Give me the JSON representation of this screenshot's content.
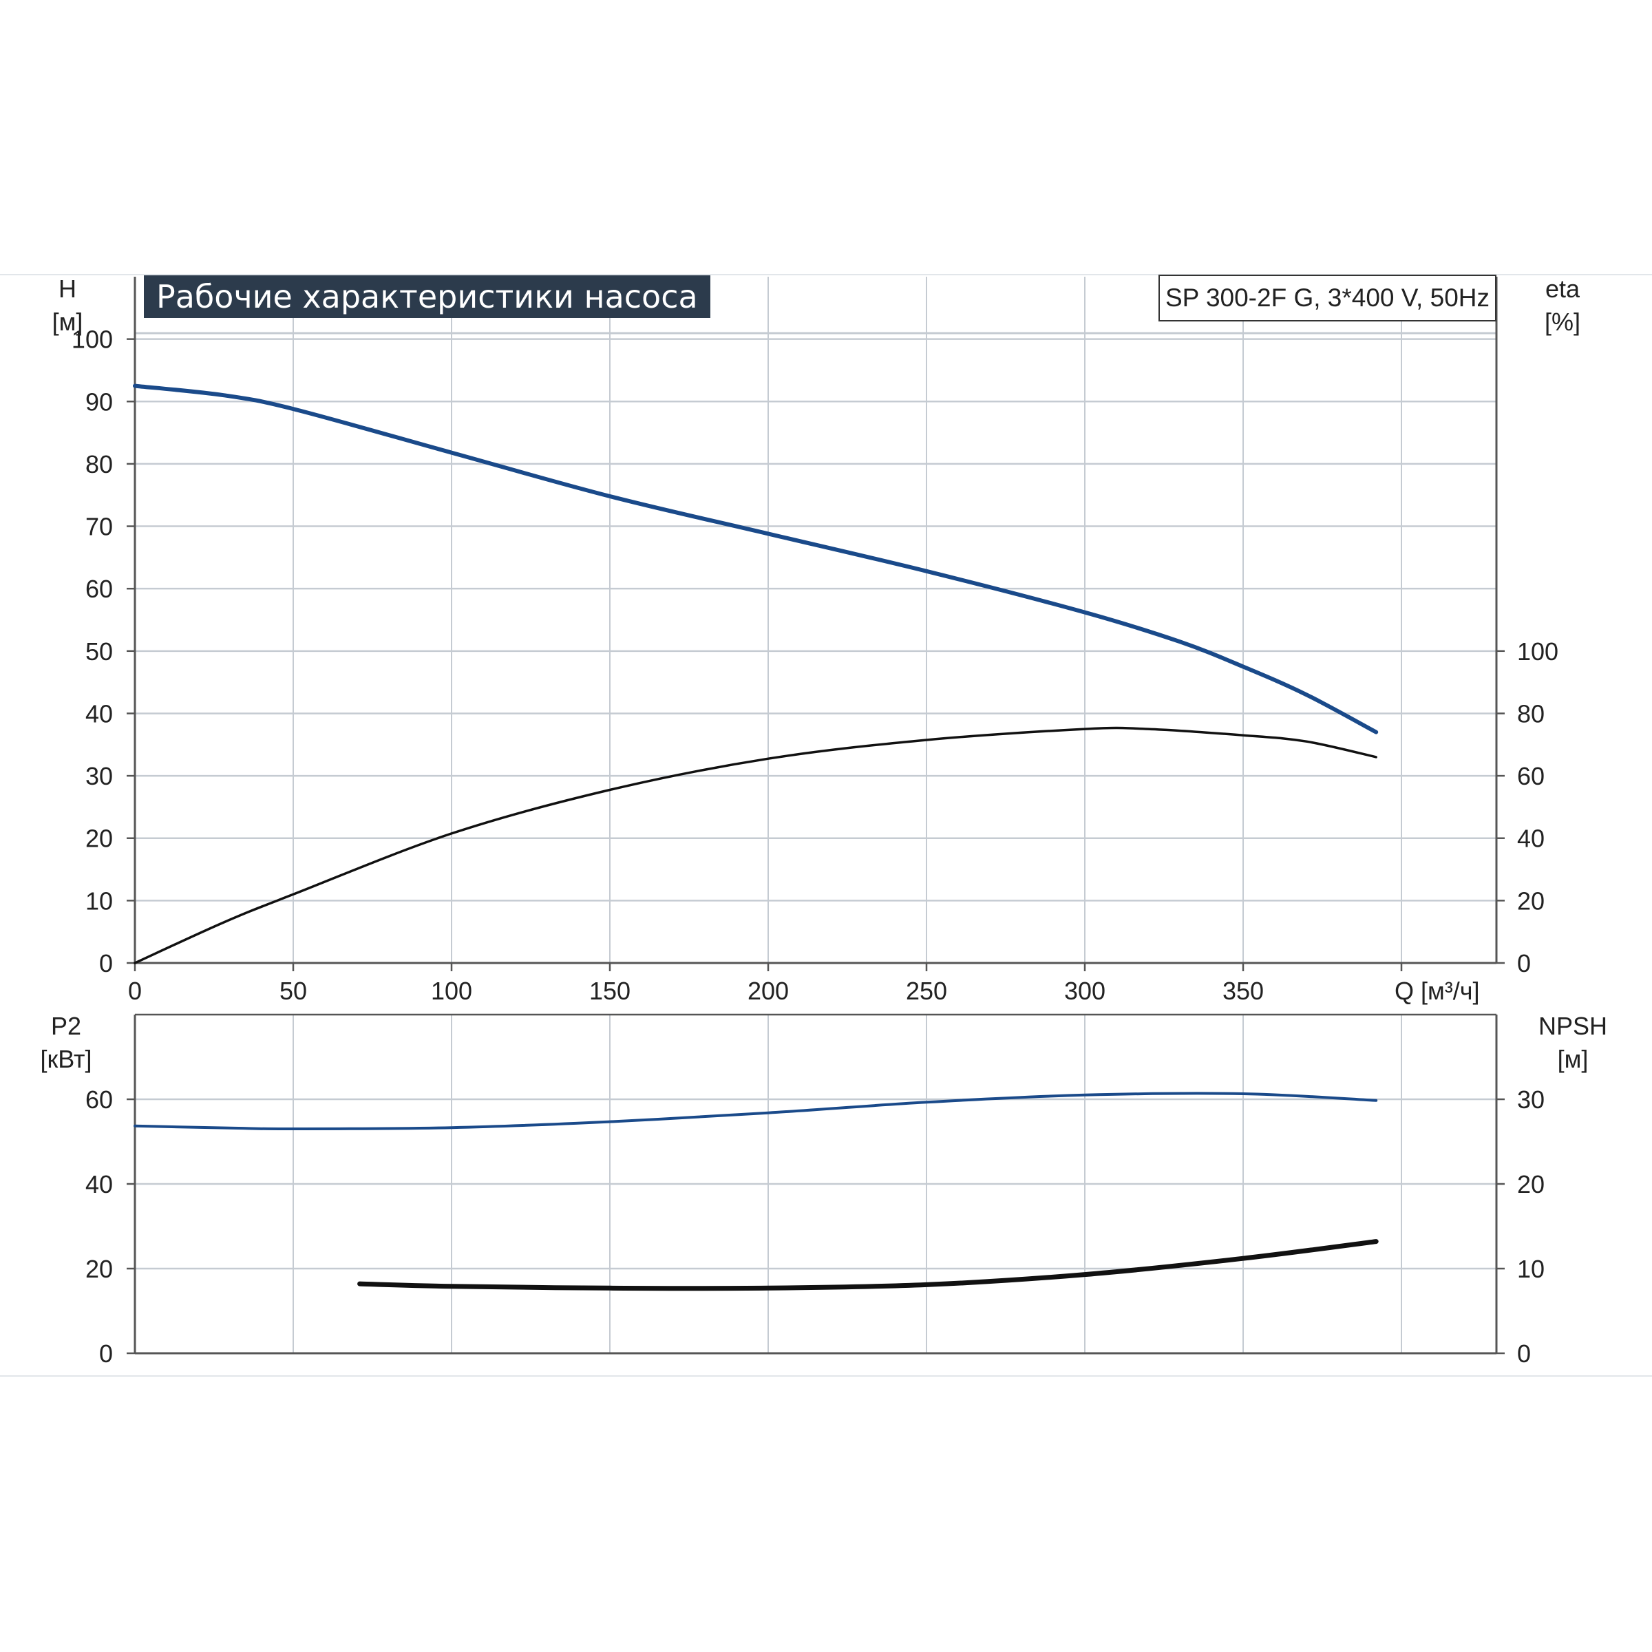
{
  "title": "Рабочие характеристики насоса",
  "model": "SP 300-2F G, 3*400 V, 50Hz",
  "colors": {
    "blue": "#1a4a8a",
    "black": "#111111",
    "grid": "#c5cbd2",
    "title_bg": "#2c3b4c"
  },
  "chart_data": [
    {
      "type": "line",
      "panel": "top",
      "xlabel": "Q [м³/ч]",
      "xlim": [
        0,
        430
      ],
      "x_ticks": [
        "0",
        "50",
        "100",
        "150",
        "200",
        "250",
        "300",
        "350"
      ],
      "y_left_label": [
        "H",
        "[м]"
      ],
      "y_left_ticks": [
        "0",
        "10",
        "20",
        "30",
        "40",
        "50",
        "60",
        "70",
        "80",
        "90",
        "100"
      ],
      "y_left_lim": [
        0,
        110
      ],
      "y_right_label": [
        "eta",
        "[%]"
      ],
      "y_right_ticks": [
        "0",
        "20",
        "40",
        "60",
        "80",
        "100"
      ],
      "y_right_lim": [
        0,
        220
      ],
      "grid": true,
      "series": [
        {
          "name": "H",
          "axis": "left",
          "color": "#1a4a8a",
          "x": [
            0,
            28,
            50,
            100,
            150,
            200,
            250,
            300,
            330,
            350,
            370,
            392
          ],
          "y": [
            92.5,
            91,
            88.8,
            81.8,
            74.8,
            68.8,
            62.8,
            56.2,
            51.5,
            47.5,
            43,
            37
          ]
        },
        {
          "name": "eta",
          "axis": "right",
          "color": "#111111",
          "x": [
            0,
            28,
            50,
            100,
            150,
            200,
            250,
            300,
            320,
            350,
            370,
            392
          ],
          "y": [
            0,
            13,
            22,
            41.5,
            55.5,
            65.5,
            71.5,
            75,
            75,
            73,
            71,
            66
          ]
        }
      ]
    },
    {
      "type": "line",
      "panel": "bottom",
      "xlim": [
        0,
        430
      ],
      "y_left_label": [
        "P2",
        "[кВт]"
      ],
      "y_left_ticks": [
        "0",
        "20",
        "40",
        "60"
      ],
      "y_left_lim": [
        0,
        80
      ],
      "y_right_label": [
        "NPSH",
        "[м]"
      ],
      "y_right_ticks": [
        "0",
        "10",
        "20",
        "30"
      ],
      "y_right_lim": [
        0,
        40
      ],
      "grid": true,
      "series": [
        {
          "name": "P2",
          "axis": "left",
          "color": "#1a4a8a",
          "x": [
            0,
            30,
            50,
            100,
            150,
            200,
            250,
            300,
            350,
            392
          ],
          "y": [
            53.7,
            53.2,
            53,
            53.3,
            54.7,
            56.8,
            59.3,
            61,
            61.3,
            59.7
          ]
        },
        {
          "name": "NPSH",
          "axis": "right",
          "color": "#111111",
          "x": [
            71,
            100,
            150,
            200,
            250,
            300,
            350,
            392
          ],
          "y": [
            8.2,
            7.9,
            7.7,
            7.7,
            8.1,
            9.3,
            11.2,
            13.2
          ]
        }
      ]
    }
  ]
}
